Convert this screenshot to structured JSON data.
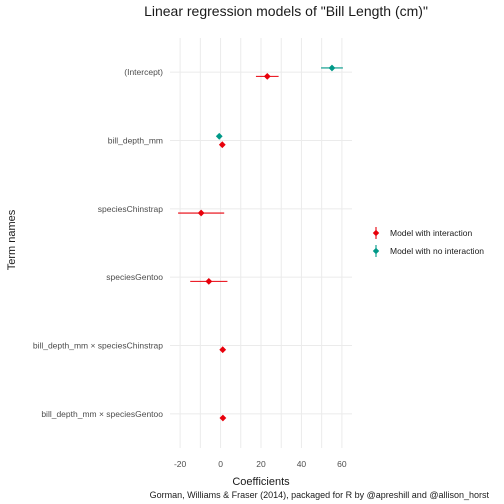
{
  "chart_data": {
    "type": "scatter",
    "title": "Linear regression models of \"Bill Length (cm)\"",
    "xlabel": "Coefficients",
    "ylabel": "Term names",
    "caption": "Gorman, Williams & Fraser (2014), packaged for R by @apreshill and @allison_horst",
    "xlim": [
      -25,
      65
    ],
    "xticks": [
      -20,
      0,
      20,
      40,
      60
    ],
    "xtick_labels": [
      "-20",
      "0",
      "20",
      "40",
      "60"
    ],
    "grid": true,
    "legend_position": "right",
    "terms": [
      "(Intercept)",
      "bill_depth_mm",
      "speciesChinstrap",
      "speciesGentoo",
      "bill_depth_mm × speciesChinstrap",
      "bill_depth_mm × speciesGentoo"
    ],
    "series": [
      {
        "name": "Model with interaction",
        "color": "#e8000b",
        "points": [
          {
            "term": "(Intercept)",
            "estimate": 23.1,
            "low": 17.5,
            "high": 28.7
          },
          {
            "term": "bill_depth_mm",
            "estimate": 0.86,
            "low": 0.5,
            "high": 1.2
          },
          {
            "term": "speciesChinstrap",
            "estimate": -9.6,
            "low": -21.0,
            "high": 1.8
          },
          {
            "term": "speciesGentoo",
            "estimate": -5.8,
            "low": -15.0,
            "high": 3.4
          },
          {
            "term": "bill_depth_mm × speciesChinstrap",
            "estimate": 1.07,
            "low": 0.4,
            "high": 1.7
          },
          {
            "term": "bill_depth_mm × speciesGentoo",
            "estimate": 1.16,
            "low": 0.5,
            "high": 1.8
          }
        ]
      },
      {
        "name": "Model with no interaction",
        "color": "#009988",
        "points": [
          {
            "term": "(Intercept)",
            "estimate": 55.1,
            "low": 49.7,
            "high": 60.5
          },
          {
            "term": "bill_depth_mm",
            "estimate": -0.65,
            "low": -0.95,
            "high": -0.35
          }
        ]
      }
    ]
  }
}
